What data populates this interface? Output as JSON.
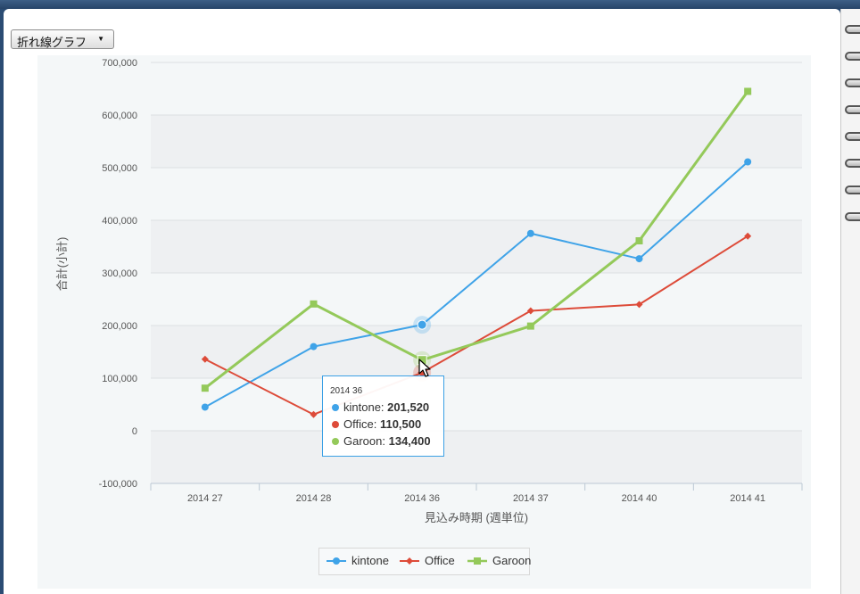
{
  "toolbar": {
    "chart_type_label": "折れ線グラフ",
    "dropdown_arrow": "▼"
  },
  "tooltip": {
    "title": "2014 36",
    "rows": [
      {
        "name": "kintone",
        "value": "201,520"
      },
      {
        "name": "Office",
        "value": "110,500"
      },
      {
        "name": "Garoon",
        "value": "134,400"
      }
    ]
  },
  "legend": {
    "items": [
      "kintone",
      "Office",
      "Garoon"
    ]
  },
  "colors": {
    "kintone": "#3fa3e8",
    "Office": "#dd4b39",
    "Garoon": "#94c95a",
    "tooltip_border": "#3ba0e5"
  },
  "icons": {
    "cursor": "arrow-cursor-icon",
    "binder_rings": "binder-ring-icon"
  },
  "chart_data": {
    "type": "line",
    "categories": [
      "2014 27",
      "2014 28",
      "2014 36",
      "2014 37",
      "2014 40",
      "2014 41"
    ],
    "series": [
      {
        "name": "kintone",
        "values": [
          45000,
          160000,
          201520,
          375000,
          327000,
          511000
        ],
        "marker": "circle"
      },
      {
        "name": "Office",
        "values": [
          136000,
          31000,
          110500,
          228000,
          240000,
          370000
        ],
        "marker": "diamond"
      },
      {
        "name": "Garoon",
        "values": [
          81000,
          241000,
          134400,
          199000,
          361000,
          645000
        ],
        "marker": "square"
      }
    ],
    "ylim": [
      -100000,
      700000
    ],
    "yticks": [
      -100000,
      0,
      100000,
      200000,
      300000,
      400000,
      500000,
      600000,
      700000
    ],
    "ytick_labels": [
      "-100,000",
      "0",
      "100,000",
      "200,000",
      "300,000",
      "400,000",
      "500,000",
      "600,000",
      "700,000"
    ],
    "xlabel": "見込み時期 (週単位)",
    "ylabel": "合計(小計)",
    "grid": true,
    "legend_position": "bottom-center",
    "highlighted_category": "2014 36"
  }
}
